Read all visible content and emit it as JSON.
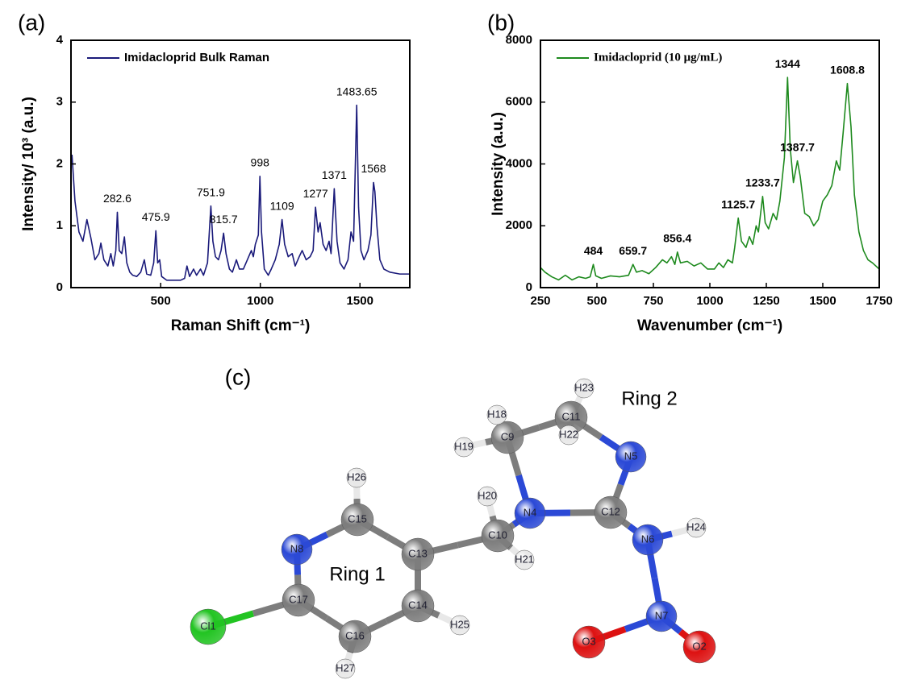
{
  "chart_data": [
    {
      "type": "line",
      "panel_label": "(a)",
      "xlabel": "Raman Shift (cm⁻¹)",
      "ylabel": "Intensity/ 10³ (a.u.)",
      "legend": "upper left",
      "xlim": [
        50,
        1750
      ],
      "ylim": [
        0,
        4
      ],
      "xticks": [
        500,
        1000,
        1500
      ],
      "yticks": [
        0,
        1,
        2,
        3,
        4
      ],
      "x": [
        55,
        70,
        90,
        110,
        130,
        150,
        170,
        190,
        200,
        215,
        235,
        250,
        262,
        275,
        282.6,
        292,
        305,
        318,
        330,
        345,
        360,
        380,
        400,
        418,
        430,
        450,
        465,
        475.9,
        485,
        495,
        505,
        530,
        600,
        620,
        632,
        645,
        665,
        680,
        700,
        715,
        735,
        751.9,
        762,
        775,
        790,
        803,
        815.7,
        828,
        845,
        860,
        880,
        895,
        915,
        935,
        955,
        965,
        975,
        990,
        998,
        1006,
        1020,
        1040,
        1055,
        1075,
        1095,
        1109,
        1122,
        1140,
        1160,
        1175,
        1195,
        1210,
        1230,
        1250,
        1265,
        1277,
        1290,
        1300,
        1315,
        1330,
        1345,
        1355,
        1371,
        1385,
        1400,
        1420,
        1440,
        1455,
        1468,
        1483.65,
        1493,
        1505,
        1520,
        1540,
        1555,
        1568,
        1575,
        1585,
        1600,
        1620,
        1650,
        1700,
        1750
      ],
      "series": [
        {
          "name": "Imidacloprid Bulk Raman",
          "color": "#1a1a7a",
          "values": [
            2.15,
            1.4,
            0.9,
            0.75,
            1.1,
            0.8,
            0.45,
            0.55,
            0.72,
            0.45,
            0.35,
            0.55,
            0.35,
            0.6,
            1.22,
            0.6,
            0.55,
            0.82,
            0.4,
            0.25,
            0.2,
            0.18,
            0.25,
            0.45,
            0.22,
            0.2,
            0.4,
            0.92,
            0.4,
            0.45,
            0.18,
            0.12,
            0.12,
            0.15,
            0.35,
            0.18,
            0.3,
            0.2,
            0.3,
            0.2,
            0.4,
            1.32,
            0.75,
            0.5,
            0.45,
            0.6,
            0.88,
            0.55,
            0.3,
            0.25,
            0.45,
            0.3,
            0.3,
            0.45,
            0.6,
            0.5,
            0.7,
            0.85,
            1.8,
            0.9,
            0.3,
            0.2,
            0.3,
            0.45,
            0.7,
            1.1,
            0.7,
            0.5,
            0.55,
            0.35,
            0.5,
            0.6,
            0.45,
            0.5,
            0.6,
            1.3,
            0.9,
            1.05,
            0.7,
            0.6,
            0.75,
            0.55,
            1.6,
            0.75,
            0.4,
            0.3,
            0.45,
            0.9,
            0.75,
            2.95,
            1.3,
            0.6,
            0.45,
            0.6,
            0.85,
            1.7,
            1.55,
            1.0,
            0.45,
            0.3,
            0.25,
            0.22,
            0.22
          ]
        }
      ],
      "peaks": [
        {
          "x": 282.6,
          "y": 1.22
        },
        {
          "x": 475.9,
          "y": 0.92
        },
        {
          "x": 751.9,
          "y": 1.32
        },
        {
          "x": 815.7,
          "y": 0.88
        },
        {
          "x": 998,
          "y": 1.8
        },
        {
          "x": 1109,
          "y": 1.1
        },
        {
          "x": 1277,
          "y": 1.3
        },
        {
          "x": 1371,
          "y": 1.6
        },
        {
          "x": 1483.65,
          "y": 2.95
        },
        {
          "x": 1568,
          "y": 1.7
        }
      ]
    },
    {
      "type": "line",
      "panel_label": "(b)",
      "xlabel": "Wavenumber (cm⁻¹)",
      "ylabel": "Intensity (a.u.)",
      "legend": "upper left",
      "xlim": [
        250,
        1750
      ],
      "ylim": [
        0,
        8000
      ],
      "xticks": [
        250,
        500,
        750,
        1000,
        1250,
        1500,
        1750
      ],
      "yticks": [
        0,
        2000,
        4000,
        6000,
        8000
      ],
      "x": [
        250,
        270,
        300,
        330,
        360,
        390,
        420,
        450,
        470,
        484,
        495,
        520,
        560,
        600,
        640,
        659.7,
        675,
        700,
        730,
        760,
        790,
        810,
        830,
        845,
        856.4,
        870,
        900,
        930,
        960,
        990,
        1020,
        1040,
        1060,
        1080,
        1100,
        1110,
        1125.7,
        1140,
        1160,
        1175,
        1190,
        1205,
        1215,
        1233.7,
        1245,
        1260,
        1280,
        1295,
        1310,
        1330,
        1344,
        1356,
        1370,
        1387.7,
        1400,
        1420,
        1440,
        1460,
        1480,
        1500,
        1520,
        1540,
        1560,
        1575,
        1590,
        1608.8,
        1625,
        1640,
        1660,
        1680,
        1700,
        1720,
        1750
      ],
      "series": [
        {
          "name": "Imidacloprid (10 μg/mL)",
          "color": "#1e8a1e",
          "values": [
            650,
            500,
            350,
            250,
            400,
            250,
            350,
            300,
            350,
            750,
            380,
            300,
            380,
            350,
            400,
            750,
            500,
            550,
            450,
            650,
            900,
            800,
            1000,
            750,
            1150,
            800,
            850,
            700,
            800,
            600,
            600,
            800,
            650,
            900,
            800,
            1300,
            2250,
            1500,
            1300,
            1650,
            1400,
            2000,
            1800,
            2950,
            2100,
            1900,
            2400,
            2200,
            2800,
            4200,
            6800,
            4500,
            3400,
            4100,
            3600,
            2400,
            2300,
            2000,
            2200,
            2800,
            3000,
            3300,
            4100,
            3800,
            5000,
            6600,
            5200,
            3000,
            1800,
            1200,
            900,
            800,
            600
          ]
        }
      ],
      "peaks": [
        {
          "x": 484,
          "y": 750
        },
        {
          "x": 659.7,
          "y": 750
        },
        {
          "x": 856.4,
          "y": 1150
        },
        {
          "x": 1125.7,
          "y": 2250
        },
        {
          "x": 1233.7,
          "y": 2950
        },
        {
          "x": 1344,
          "y": 6800
        },
        {
          "x": 1387.7,
          "y": 4100
        },
        {
          "x": 1608.8,
          "y": 6600
        }
      ]
    }
  ],
  "diagram": {
    "panel_label": "(c)",
    "rings": [
      "Ring 1",
      "Ring 2"
    ],
    "atoms": [
      "Cl1",
      "C17",
      "C16",
      "H27",
      "N8",
      "C15",
      "H26",
      "C13",
      "C14",
      "H25",
      "C10",
      "H20",
      "H21",
      "N4",
      "C12",
      "N5",
      "C11",
      "H23",
      "H22",
      "C9",
      "H18",
      "H19",
      "N6",
      "H24",
      "N7",
      "O3",
      "O2"
    ]
  }
}
